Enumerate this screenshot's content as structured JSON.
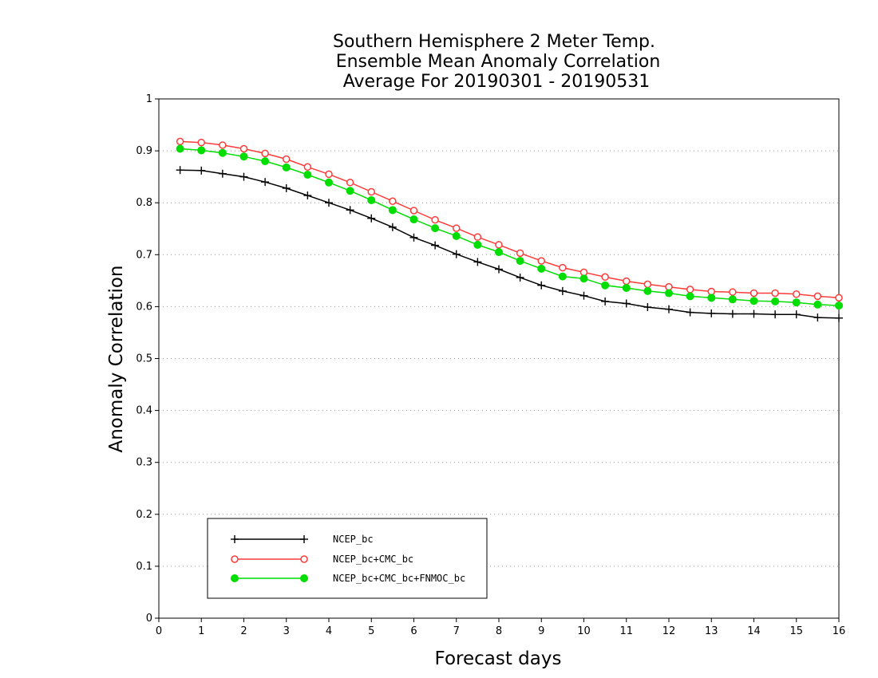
{
  "chart_data": {
    "type": "line",
    "title": [
      "Southern Hemisphere 2 Meter Temp.",
      "Ensemble Mean Anomaly Correlation",
      "Average For 20190301 - 20190531"
    ],
    "xlabel": "Forecast days",
    "ylabel": "Anomaly Correlation",
    "xlim": [
      0,
      16
    ],
    "ylim": [
      0,
      1
    ],
    "x_ticks": [
      "0",
      "1",
      "2",
      "3",
      "4",
      "5",
      "6",
      "7",
      "8",
      "9",
      "10",
      "11",
      "12",
      "13",
      "14",
      "15",
      "16"
    ],
    "y_ticks": [
      "0",
      "0.1",
      "0.2",
      "0.3",
      "0.4",
      "0.5",
      "0.6",
      "0.7",
      "0.8",
      "0.9",
      "1"
    ],
    "grid": "horizontal dotted",
    "legend_position": "bottom-left",
    "x": [
      0.5,
      1,
      1.5,
      2,
      2.5,
      3,
      3.5,
      4,
      4.5,
      5,
      5.5,
      6,
      6.5,
      7,
      7.5,
      8,
      8.5,
      9,
      9.5,
      10,
      10.5,
      11,
      11.5,
      12,
      12.5,
      13,
      13.5,
      14,
      14.5,
      15,
      15.5,
      16
    ],
    "series": [
      {
        "name": "NCEP_bc",
        "color": "#000000",
        "marker": "plus",
        "values": [
          0.863,
          0.862,
          0.856,
          0.85,
          0.84,
          0.828,
          0.814,
          0.8,
          0.786,
          0.77,
          0.753,
          0.733,
          0.718,
          0.701,
          0.686,
          0.672,
          0.656,
          0.641,
          0.63,
          0.621,
          0.61,
          0.606,
          0.599,
          0.595,
          0.589,
          0.587,
          0.586,
          0.586,
          0.585,
          0.585,
          0.579,
          0.578
        ]
      },
      {
        "name": "NCEP_bc+CMC_bc",
        "color": "#ff3b3b",
        "marker": "open-circle",
        "values": [
          0.918,
          0.916,
          0.911,
          0.904,
          0.895,
          0.884,
          0.869,
          0.855,
          0.839,
          0.821,
          0.803,
          0.785,
          0.767,
          0.751,
          0.734,
          0.719,
          0.703,
          0.688,
          0.675,
          0.666,
          0.657,
          0.649,
          0.643,
          0.638,
          0.633,
          0.629,
          0.628,
          0.626,
          0.626,
          0.624,
          0.62,
          0.617
        ]
      },
      {
        "name": "NCEP_bc+CMC_bc+FNMOC_bc",
        "color": "#00dd00",
        "marker": "filled-circle",
        "values": [
          0.904,
          0.901,
          0.896,
          0.889,
          0.88,
          0.868,
          0.854,
          0.839,
          0.823,
          0.805,
          0.786,
          0.768,
          0.751,
          0.736,
          0.719,
          0.705,
          0.688,
          0.673,
          0.658,
          0.654,
          0.641,
          0.636,
          0.63,
          0.626,
          0.62,
          0.617,
          0.614,
          0.611,
          0.61,
          0.608,
          0.604,
          0.602
        ]
      }
    ]
  }
}
